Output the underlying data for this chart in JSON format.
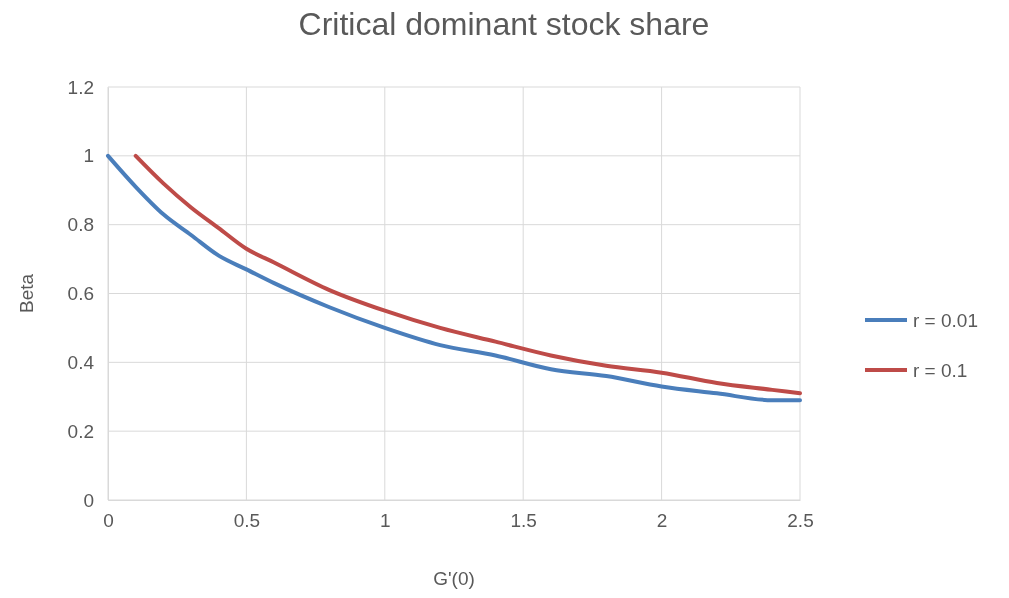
{
  "chart_data": {
    "type": "line",
    "title": "Critical dominant stock share",
    "xlabel": "G'(0)",
    "ylabel": "Beta",
    "xlim": [
      0,
      2.5
    ],
    "xticks": [
      0,
      0.5,
      1,
      1.5,
      2,
      2.5
    ],
    "ylim": [
      0,
      1.2
    ],
    "yticks": [
      0,
      0.2,
      0.4,
      0.6,
      0.8,
      1,
      1.2
    ],
    "grid": true,
    "legend": "right",
    "marker": "none",
    "line_style": "solid",
    "series": [
      {
        "name": "r = 0.01",
        "color": "#4a7ebb",
        "x": [
          0,
          0.1,
          0.2,
          0.3,
          0.4,
          0.5,
          0.6,
          0.8,
          1,
          1.2,
          1.4,
          1.6,
          1.8,
          2,
          2.2,
          2.4,
          2.5
        ],
        "values": [
          1,
          0.91,
          0.83,
          0.77,
          0.71,
          0.67,
          0.63,
          0.56,
          0.5,
          0.45,
          0.42,
          0.38,
          0.36,
          0.33,
          0.31,
          0.29,
          0.29
        ]
      },
      {
        "name": "r = 0.1",
        "color": "#be4b48",
        "x": [
          0.1,
          0.2,
          0.3,
          0.4,
          0.5,
          0.6,
          0.8,
          1,
          1.2,
          1.4,
          1.6,
          1.8,
          2,
          2.2,
          2.4,
          2.5
        ],
        "values": [
          1,
          0.92,
          0.85,
          0.79,
          0.73,
          0.69,
          0.61,
          0.55,
          0.5,
          0.46,
          0.42,
          0.39,
          0.37,
          0.34,
          0.32,
          0.31
        ]
      }
    ]
  }
}
